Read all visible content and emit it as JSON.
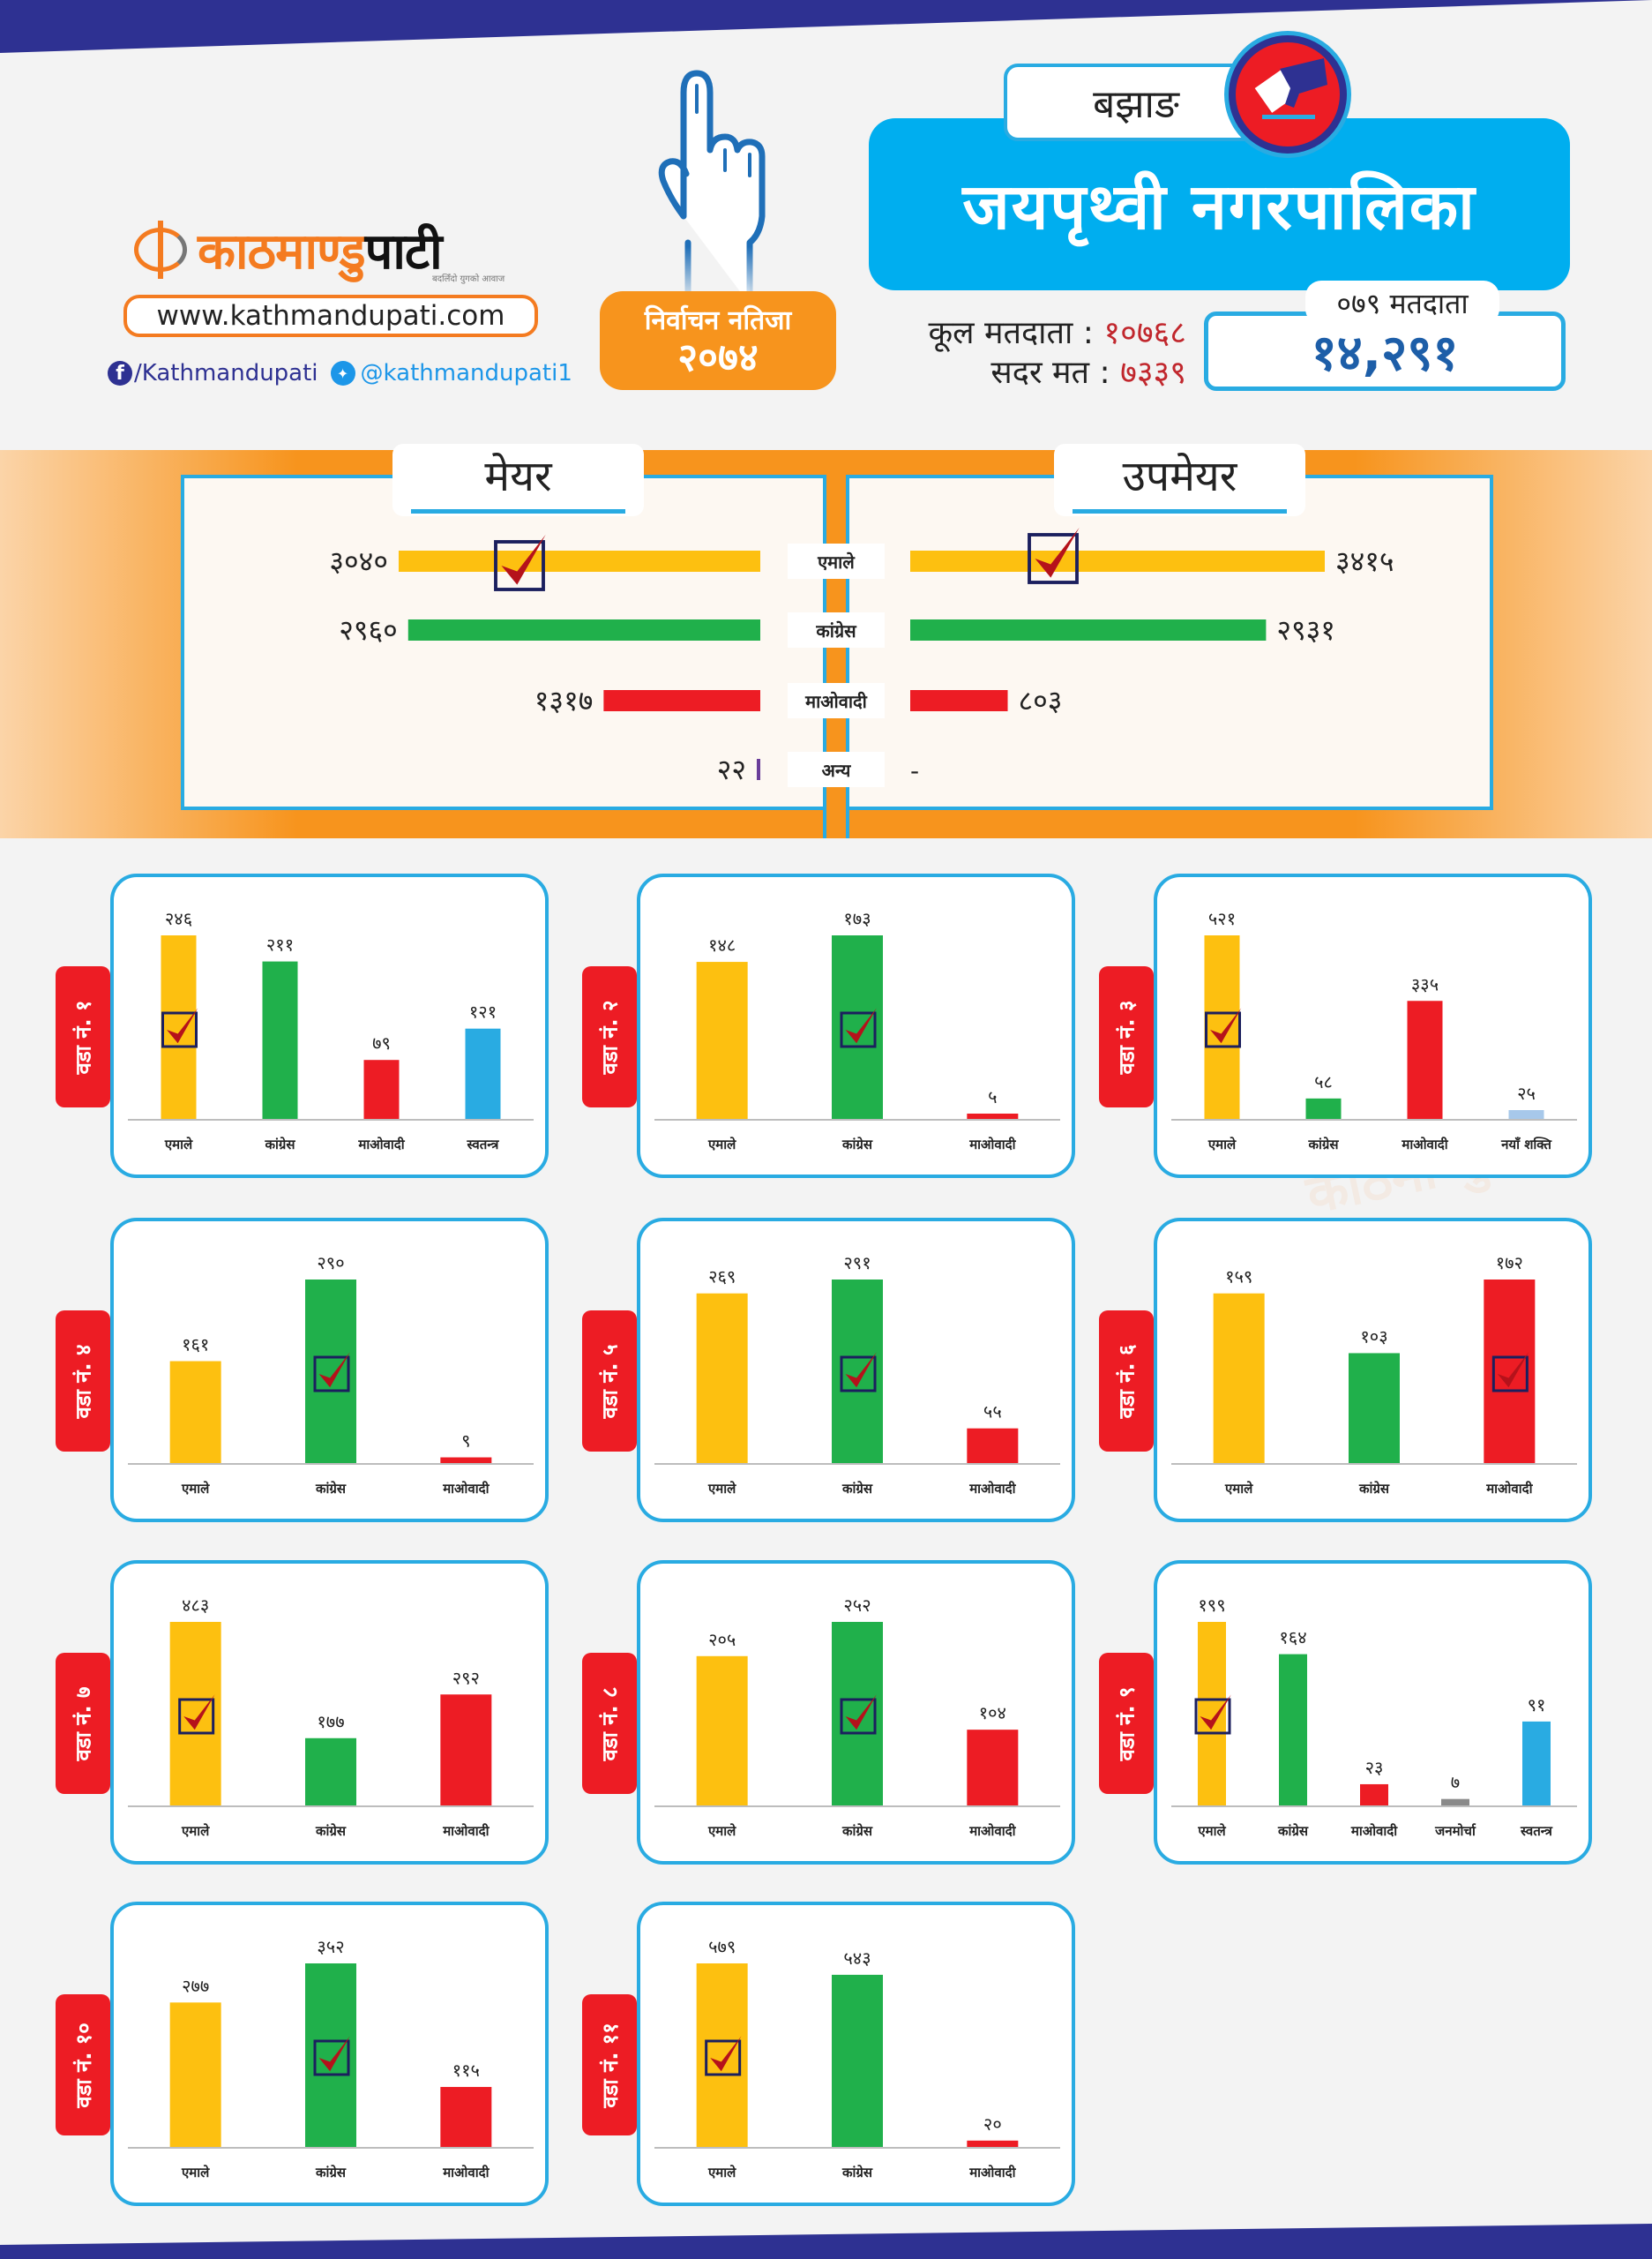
{
  "brand": {
    "logo_part1": "काठमाण्डु",
    "logo_part2": "पाटी",
    "tagline": "बदलिँदो युगको आवाज",
    "website": "www.kathmandupati.com",
    "facebook": "/Kathmandupati",
    "twitter": "@kathmandupati1",
    "colors": {
      "orange": "#f47b20",
      "navy": "#2e3192",
      "blue": "#00aeef"
    }
  },
  "badge": {
    "line1": "निर्वाचन नतिजा",
    "line2": "२०७४"
  },
  "header": {
    "district": "बझाङ",
    "municipality": "जयपृथ्वी नगरपालिका",
    "total_voters_label": "कूल मतदाता",
    "total_voters_value": "१०७६८",
    "valid_votes_label": "सदर मत",
    "valid_votes_value": "७३३९",
    "separator": ":",
    "voters_079_label": "०७९ मतदाता",
    "voters_079_value": "१४,२९१"
  },
  "party_colors": {
    "एमाले": "#fdc010",
    "कांग्रेस": "#20b04b",
    "माओवादी": "#ed1c24",
    "स्वतन्त्र": "#29abe2",
    "नयाँ शक्ति": "#a7c8ea",
    "जनमोर्चा": "#8a8a8a",
    "अन्य": "#6a3d9a"
  },
  "chart_data": [
    {
      "type": "bar",
      "orientation": "horizontal",
      "title": "मेयर",
      "categories": [
        "एमाले",
        "कांग्रेस",
        "माओवादी",
        "अन्य"
      ],
      "values": [
        3040,
        2960,
        1317,
        22
      ],
      "value_labels": [
        "३०४०",
        "२९६०",
        "१३१७",
        "२२"
      ],
      "winner": "एमाले",
      "xlim": [
        0,
        3415
      ]
    },
    {
      "type": "bar",
      "orientation": "horizontal",
      "title": "उपमेयर",
      "categories": [
        "एमाले",
        "कांग्रेस",
        "माओवादी",
        "अन्य"
      ],
      "values": [
        3415,
        2931,
        803,
        null
      ],
      "value_labels": [
        "३४१५",
        "२९३१",
        "८०३",
        "-"
      ],
      "winner": "एमाले",
      "xlim": [
        0,
        3415
      ]
    },
    {
      "type": "bar",
      "title": "वडा नं. १",
      "categories": [
        "एमाले",
        "कांग्रेस",
        "माओवादी",
        "स्वतन्त्र"
      ],
      "values": [
        246,
        211,
        79,
        121
      ],
      "value_labels": [
        "२४६",
        "२११",
        "७९",
        "१२१"
      ],
      "winner": "एमाले"
    },
    {
      "type": "bar",
      "title": "वडा नं. २",
      "categories": [
        "एमाले",
        "कांग्रेस",
        "माओवादी"
      ],
      "values": [
        148,
        173,
        5
      ],
      "value_labels": [
        "१४८",
        "१७३",
        "५"
      ],
      "winner": "कांग्रेस"
    },
    {
      "type": "bar",
      "title": "वडा नं. ३",
      "categories": [
        "एमाले",
        "कांग्रेस",
        "माओवादी",
        "नयाँ शक्ति"
      ],
      "values": [
        521,
        58,
        335,
        25
      ],
      "value_labels": [
        "५२१",
        "५८",
        "३३५",
        "२५"
      ],
      "winner": "एमाले"
    },
    {
      "type": "bar",
      "title": "वडा नं. ४",
      "categories": [
        "एमाले",
        "कांग्रेस",
        "माओवादी"
      ],
      "values": [
        161,
        290,
        9
      ],
      "value_labels": [
        "१६१",
        "२९०",
        "९"
      ],
      "winner": "कांग्रेस"
    },
    {
      "type": "bar",
      "title": "वडा नं. ५",
      "categories": [
        "एमाले",
        "कांग्रेस",
        "माओवादी"
      ],
      "values": [
        269,
        291,
        55
      ],
      "value_labels": [
        "२६९",
        "२९१",
        "५५"
      ],
      "winner": "कांग्रेस"
    },
    {
      "type": "bar",
      "title": "वडा नं. ६",
      "categories": [
        "एमाले",
        "कांग्रेस",
        "माओवादी"
      ],
      "values": [
        159,
        103,
        172
      ],
      "value_labels": [
        "१५९",
        "१०३",
        "१७२"
      ],
      "winner": "माओवादी"
    },
    {
      "type": "bar",
      "title": "वडा नं. ७",
      "categories": [
        "एमाले",
        "कांग्रेस",
        "माओवादी"
      ],
      "values": [
        483,
        177,
        292
      ],
      "value_labels": [
        "४८३",
        "१७७",
        "२९२"
      ],
      "winner": "एमाले"
    },
    {
      "type": "bar",
      "title": "वडा नं. ८",
      "categories": [
        "एमाले",
        "कांग्रेस",
        "माओवादी"
      ],
      "values": [
        205,
        252,
        104
      ],
      "value_labels": [
        "२०५",
        "२५२",
        "१०४"
      ],
      "winner": "कांग्रेस"
    },
    {
      "type": "bar",
      "title": "वडा नं. ९",
      "categories": [
        "एमाले",
        "कांग्रेस",
        "माओवादी",
        "जनमोर्चा",
        "स्वतन्त्र"
      ],
      "values": [
        199,
        164,
        23,
        7,
        91
      ],
      "value_labels": [
        "१९९",
        "१६४",
        "२३",
        "७",
        "९१"
      ],
      "winner": "एमाले"
    },
    {
      "type": "bar",
      "title": "वडा नं. १०",
      "categories": [
        "एमाले",
        "कांग्रेस",
        "माओवादी"
      ],
      "values": [
        277,
        352,
        115
      ],
      "value_labels": [
        "२७७",
        "३५२",
        "११५"
      ],
      "winner": "कांग्रेस"
    },
    {
      "type": "bar",
      "title": "वडा नं. ११",
      "categories": [
        "एमाले",
        "कांग्रेस",
        "माओवादी"
      ],
      "values": [
        579,
        543,
        20
      ],
      "value_labels": [
        "५७९",
        "५४३",
        "२०"
      ],
      "winner": "एमाले"
    }
  ]
}
